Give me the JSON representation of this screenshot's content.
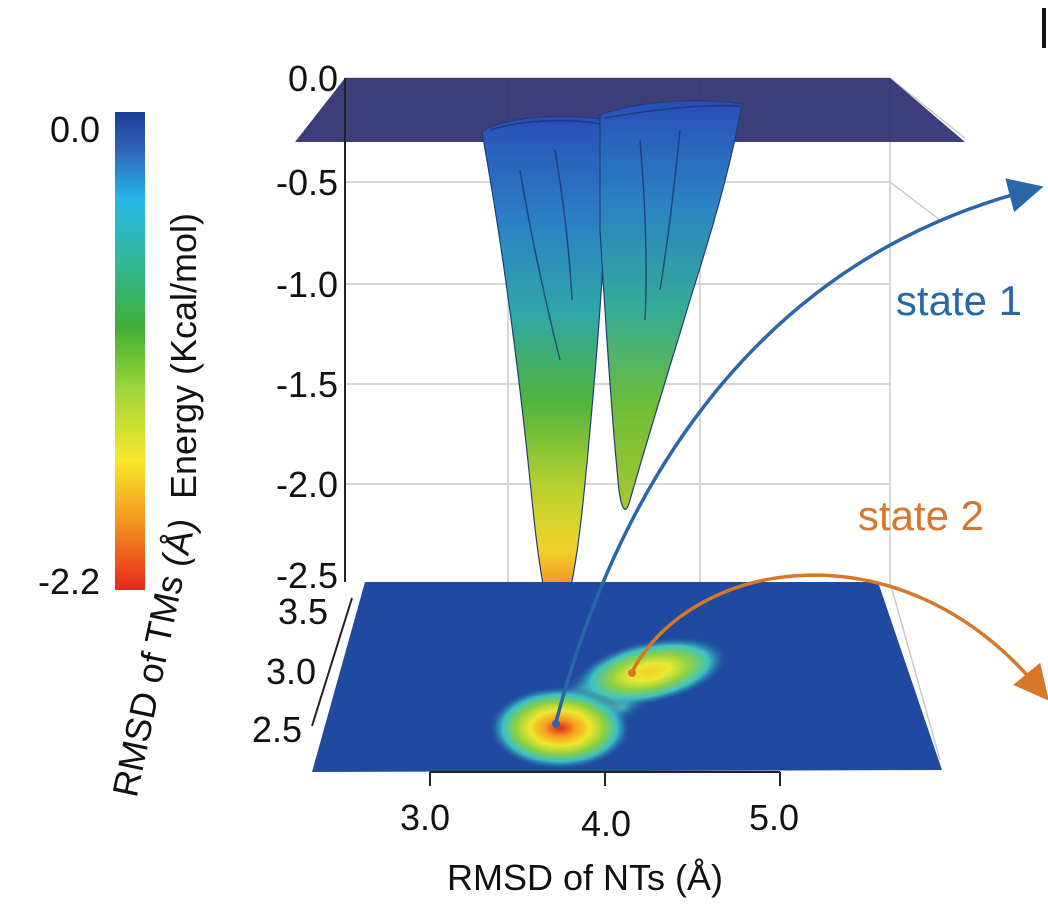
{
  "chart_data": {
    "type": "surface",
    "colorbar": {
      "label": "Energy (Kcal/mol)",
      "max_label": "0.0",
      "min_label": "-2.2",
      "range": [
        -2.2,
        0.0
      ],
      "colors": [
        "#e8271b",
        "#f39a1f",
        "#f6e82a",
        "#9fd53a",
        "#3fae35",
        "#2fb9a2",
        "#27b6e8",
        "#2f63b7",
        "#1d3f96"
      ]
    },
    "z_axis": {
      "label": "Energy",
      "ticks": [
        "0.0",
        "-0.5",
        "-1.0",
        "-1.5",
        "-2.0",
        "-2.5"
      ],
      "range": [
        -2.5,
        0.0
      ]
    },
    "y_axis": {
      "label": "RMSD of TMs (Å)",
      "ticks": [
        "3.5",
        "3.0",
        "2.5"
      ]
    },
    "x_axis": {
      "label": "RMSD of NTs (Å)",
      "ticks": [
        "3.0",
        "4.0",
        "5.0"
      ]
    },
    "minima": [
      {
        "label": "state 1",
        "x_rmsd_nt": 3.8,
        "y_rmsd_tm": 2.45,
        "energy": -2.2,
        "color": "#2a67a8"
      },
      {
        "label": "state 2",
        "x_rmsd_nt": 4.2,
        "y_rmsd_tm": 2.9,
        "energy": -2.0,
        "color": "#d8762a"
      }
    ],
    "top_plane": {
      "energy": 0.0,
      "color": "#2b2d6e"
    },
    "floor_color": "#1f4a9f"
  }
}
